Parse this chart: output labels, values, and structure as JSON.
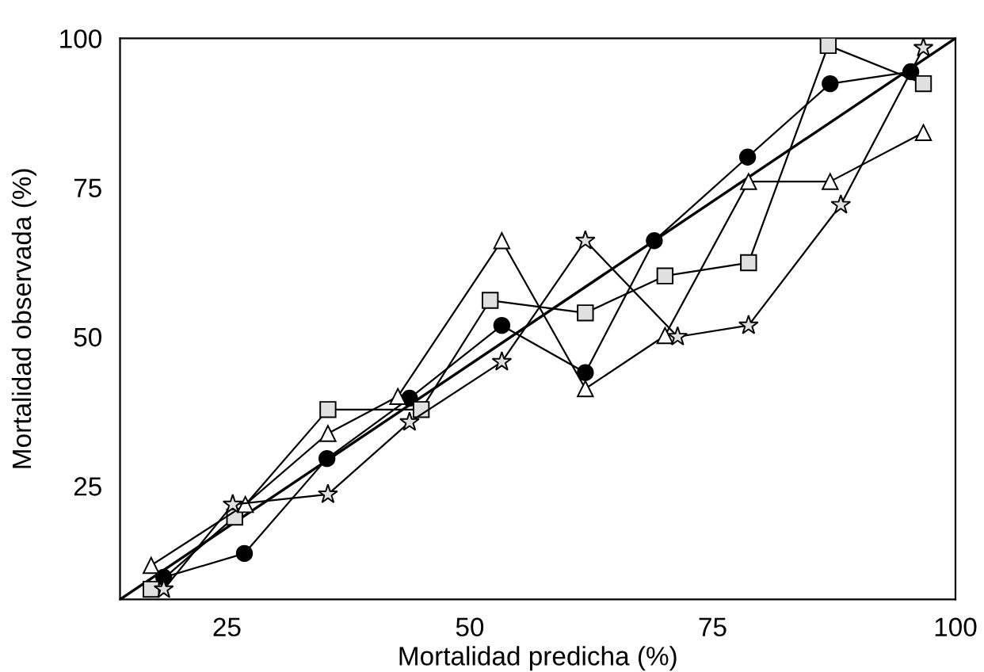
{
  "chart_data": {
    "type": "line",
    "xlabel": "Mortalidad predicha (%)",
    "ylabel": "Mortalidad observada (%)",
    "xlim": [
      14,
      100
    ],
    "ylim": [
      6,
      100
    ],
    "xticks": [
      25,
      50,
      75,
      100
    ],
    "yticks": [
      25,
      50,
      75,
      100
    ],
    "grid": false,
    "legend": false,
    "line_style": "solid",
    "series": [
      {
        "marker": "none",
        "color": "#000000",
        "x": [
          14,
          100
        ],
        "values": [
          6,
          100
        ]
      },
      {
        "marker": "circle",
        "color": "#000000",
        "x": [
          18.5,
          26.8,
          35.3,
          43.8,
          53.3,
          61.9,
          69.0,
          78.6,
          87.1,
          95.4
        ],
        "values": [
          9.7,
          13.7,
          29.6,
          39.7,
          51.9,
          44.0,
          66.1,
          80.1,
          92.4,
          94.4
        ]
      },
      {
        "marker": "square",
        "color": "#e0e0e0",
        "x": [
          17.2,
          25.8,
          35.4,
          45.0,
          52.1,
          61.9,
          70.1,
          78.7,
          86.9,
          96.7
        ],
        "values": [
          7.7,
          19.8,
          37.8,
          37.8,
          56.1,
          54.0,
          60.2,
          62.4,
          98.8,
          92.4
        ]
      },
      {
        "marker": "triangle",
        "color": "#ffffff",
        "x": [
          17.2,
          26.9,
          35.4,
          42.6,
          53.3,
          61.9,
          70.1,
          78.7,
          87.1,
          96.7
        ],
        "values": [
          11.7,
          21.9,
          33.8,
          40.0,
          66.1,
          41.3,
          50.2,
          76.0,
          76.0,
          84.2
        ]
      },
      {
        "marker": "star",
        "color": "#e0e0e0",
        "x": [
          18.5,
          25.6,
          35.4,
          43.8,
          53.3,
          61.9,
          71.4,
          78.7,
          88.2,
          96.7
        ],
        "values": [
          7.7,
          21.9,
          23.6,
          35.7,
          45.8,
          66.1,
          50.0,
          51.9,
          72.1,
          98.4
        ]
      }
    ]
  }
}
